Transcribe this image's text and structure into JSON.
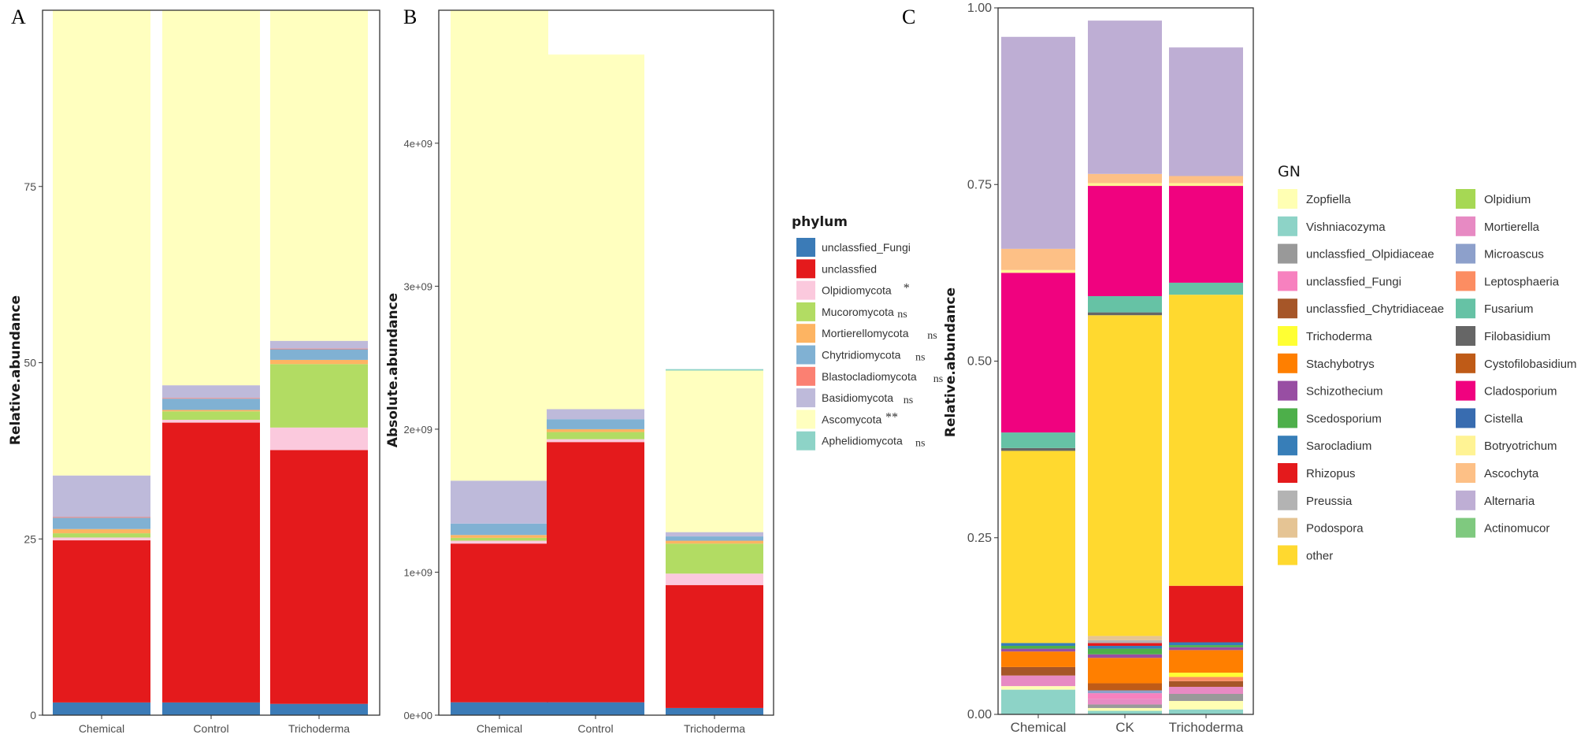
{
  "colors": {
    "unclassfied_Fungi": "#3b7bb7",
    "unclassfied": "#e41a1c",
    "Olpidiomycota": "#fbc9dd",
    "Mucoromycota": "#b2dc63",
    "Mortierellomycota": "#fdb462",
    "Chytridiomycota": "#80b1d3",
    "Blastocladiomycota": "#fb8072",
    "Basidiomycota": "#bebada",
    "Ascomycota": "#ffffbf",
    "Aphelidiomycota": "#8dd3c7"
  },
  "chart_data": [
    {
      "id": "A",
      "type": "bar",
      "stacked": true,
      "title": "",
      "panel_label": "A",
      "xlabel": "",
      "ylabel": "Relative.abundance",
      "ylim": [
        0,
        100
      ],
      "yticks": [
        0,
        25,
        50,
        75
      ],
      "ytick_labels": [
        "0",
        "25",
        "50",
        "75"
      ],
      "categories": [
        "Chemical",
        "Control",
        "Trichoderma"
      ],
      "series": [
        {
          "name": "unclassfied_Fungi",
          "values": [
            1.8,
            1.8,
            1.6
          ]
        },
        {
          "name": "unclassfied",
          "values": [
            23.0,
            39.7,
            36.0
          ]
        },
        {
          "name": "Olpidiomycota",
          "values": [
            0.4,
            0.4,
            3.2
          ]
        },
        {
          "name": "Mucoromycota",
          "values": [
            0.6,
            1.2,
            9.0
          ]
        },
        {
          "name": "Mortierellomycota",
          "values": [
            0.6,
            0.2,
            0.6
          ]
        },
        {
          "name": "Chytridiomycota",
          "values": [
            1.6,
            1.6,
            1.5
          ]
        },
        {
          "name": "Blastocladiomycota",
          "values": [
            0.1,
            0.1,
            0.1
          ]
        },
        {
          "name": "Basidiomycota",
          "values": [
            5.9,
            1.8,
            1.1
          ]
        },
        {
          "name": "Ascomycota",
          "values": [
            66.0,
            53.2,
            46.9
          ]
        },
        {
          "name": "Aphelidiomycota",
          "values": [
            0,
            0,
            0
          ]
        }
      ]
    },
    {
      "id": "B",
      "type": "bar",
      "stacked": true,
      "title": "",
      "panel_label": "B",
      "xlabel": "",
      "ylabel": "Absolute.abundance",
      "ylim": [
        0,
        4930000000
      ],
      "yticks": [
        0,
        1000000000,
        2000000000,
        3000000000,
        4000000000
      ],
      "ytick_labels": [
        "0e+00",
        "1e+09",
        "2e+09",
        "3e+09",
        "4e+09"
      ],
      "categories": [
        "Chemical",
        "Control",
        "Trichoderma"
      ],
      "series": [
        {
          "name": "unclassfied_Fungi",
          "values": [
            90000000,
            90000000,
            50000000
          ]
        },
        {
          "name": "unclassfied",
          "values": [
            1110000000,
            1820000000,
            860000000
          ]
        },
        {
          "name": "Olpidiomycota",
          "values": [
            20000000,
            20000000,
            80000000
          ]
        },
        {
          "name": "Mucoromycota",
          "values": [
            20000000,
            50000000,
            210000000
          ]
        },
        {
          "name": "Mortierellomycota",
          "values": [
            20000000,
            20000000,
            20000000
          ]
        },
        {
          "name": "Chytridiomycota",
          "values": [
            80000000,
            70000000,
            30000000
          ]
        },
        {
          "name": "Blastocladiomycota",
          "values": [
            0,
            0,
            0
          ]
        },
        {
          "name": "Basidiomycota",
          "values": [
            300000000,
            70000000,
            30000000
          ]
        },
        {
          "name": "Ascomycota",
          "values": [
            3290000000,
            2480000000,
            1130000000
          ]
        },
        {
          "name": "Aphelidiomycota",
          "values": [
            0,
            0,
            10000000
          ]
        }
      ]
    },
    {
      "id": "C",
      "type": "bar",
      "stacked": true,
      "title": "",
      "panel_label": "C",
      "xlabel": "",
      "ylabel": "Relative.abundance",
      "ylim": [
        0,
        1
      ],
      "yticks": [
        0,
        0.25,
        0.5,
        0.75,
        1.0
      ],
      "ytick_labels": [
        "0.00",
        "0.25",
        "0.50",
        "0.75",
        "1.00"
      ],
      "categories": [
        "Chemical",
        "CK",
        "Trichoderma"
      ],
      "series": [
        {
          "name": "Vishniacozyma",
          "values": [
            0.035,
            0.005,
            0.007
          ],
          "color": "#8dd3c7"
        },
        {
          "name": "Zopfiella",
          "values": [
            0.005,
            0.004,
            0.012
          ],
          "color": "#ffffb3"
        },
        {
          "name": "Olpidium",
          "values": [
            0,
            0,
            0
          ],
          "color": "#a6d854"
        },
        {
          "name": "unclassfied_Olpidiaceae",
          "values": [
            0,
            0.005,
            0.01
          ],
          "color": "#999999"
        },
        {
          "name": "Mortierella",
          "values": [
            0.015,
            0.008,
            0.01
          ],
          "color": "#e78ac3"
        },
        {
          "name": "unclassfied_Fungi",
          "values": [
            0,
            0.008,
            0
          ],
          "color": "#f781bf"
        },
        {
          "name": "Microascus",
          "values": [
            0,
            0.004,
            0
          ],
          "color": "#8da0cb"
        },
        {
          "name": "unclassfied_Chytridiaceae",
          "values": [
            0.012,
            0,
            0.008
          ],
          "color": "#a65628"
        },
        {
          "name": "Leptosphaeria",
          "values": [
            0,
            0,
            0.006
          ],
          "color": "#fc8d62"
        },
        {
          "name": "Cystofilobasidium",
          "values": [
            0,
            0.01,
            0
          ],
          "color": "#bf5b17"
        },
        {
          "name": "Trichoderma",
          "values": [
            0,
            0,
            0.006
          ],
          "color": "#ffff33"
        },
        {
          "name": "Stachybotrys",
          "values": [
            0.022,
            0.036,
            0.032
          ],
          "color": "#ff7f00"
        },
        {
          "name": "Schizothecium",
          "values": [
            0.004,
            0.005,
            0.004
          ],
          "color": "#984ea3"
        },
        {
          "name": "Scedosporium",
          "values": [
            0.004,
            0.008,
            0.003
          ],
          "color": "#4daf4a"
        },
        {
          "name": "Sarocladium",
          "values": [
            0.004,
            0.004,
            0.004
          ],
          "color": "#377eb8"
        },
        {
          "name": "Rhizopus",
          "values": [
            0,
            0.004,
            0.08
          ],
          "color": "#e41a1c"
        },
        {
          "name": "Preussia",
          "values": [
            0,
            0.004,
            0
          ],
          "color": "#b3b3b3"
        },
        {
          "name": "Podospora",
          "values": [
            0,
            0.006,
            0
          ],
          "color": "#e5c494"
        },
        {
          "name": "other",
          "values": [
            0.272,
            0.454,
            0.412
          ],
          "color": "#ffd92f"
        },
        {
          "name": "Filobasidium",
          "values": [
            0.004,
            0.004,
            0
          ],
          "color": "#666666"
        },
        {
          "name": "Fusarium",
          "values": [
            0.022,
            0.023,
            0.017
          ],
          "color": "#66c2a5"
        },
        {
          "name": "Cistella",
          "values": [
            0.0,
            0.0,
            0.0
          ],
          "color": "#386cb0"
        },
        {
          "name": "Cladosporium",
          "values": [
            0.226,
            0.156,
            0.137
          ],
          "color": "#f0027f"
        },
        {
          "name": "Botryotrichum",
          "values": [
            0.004,
            0.004,
            0.004
          ],
          "color": "#fff394"
        },
        {
          "name": "Ascochyta",
          "values": [
            0.03,
            0.013,
            0.01
          ],
          "color": "#fdc086"
        },
        {
          "name": "Alternaria",
          "values": [
            0.3,
            0.217,
            0.182
          ],
          "color": "#beaed4"
        },
        {
          "name": "Actinomucor",
          "values": [
            0,
            0,
            0
          ],
          "color": "#7fc97f"
        }
      ]
    }
  ],
  "legend_B": {
    "title": "phylum",
    "items": [
      {
        "name": "unclassfied_Fungi",
        "sig": ""
      },
      {
        "name": "unclassfied",
        "sig": ""
      },
      {
        "name": "Olpidiomycota",
        "sig": "*"
      },
      {
        "name": "Mucoromycota",
        "sig": "ns"
      },
      {
        "name": "Mortierellomycota",
        "sig": "ns"
      },
      {
        "name": "Chytridiomycota",
        "sig": "ns"
      },
      {
        "name": "Blastocladiomycota",
        "sig": "ns"
      },
      {
        "name": "Basidiomycota",
        "sig": "ns"
      },
      {
        "name": "Ascomycota",
        "sig": "**"
      },
      {
        "name": "Aphelidiomycota",
        "sig": "ns"
      }
    ]
  },
  "legend_C": {
    "title": "GN",
    "col1": [
      {
        "name": "Zopfiella",
        "color": "#ffffb3"
      },
      {
        "name": "Vishniacozyma",
        "color": "#8dd3c7"
      },
      {
        "name": "unclassfied_Olpidiaceae",
        "color": "#999999"
      },
      {
        "name": "unclassfied_Fungi",
        "color": "#f781bf"
      },
      {
        "name": "unclassfied_Chytridiaceae",
        "color": "#a65628"
      },
      {
        "name": "Trichoderma",
        "color": "#ffff33"
      },
      {
        "name": "Stachybotrys",
        "color": "#ff7f00"
      },
      {
        "name": "Schizothecium",
        "color": "#984ea3"
      },
      {
        "name": "Scedosporium",
        "color": "#4daf4a"
      },
      {
        "name": "Sarocladium",
        "color": "#377eb8"
      },
      {
        "name": "Rhizopus",
        "color": "#e41a1c"
      },
      {
        "name": "Preussia",
        "color": "#b3b3b3"
      },
      {
        "name": "Podospora",
        "color": "#e5c494"
      },
      {
        "name": "other",
        "color": "#ffd92f"
      }
    ],
    "col2": [
      {
        "name": "Olpidium",
        "color": "#a6d854"
      },
      {
        "name": "Mortierella",
        "color": "#e78ac3"
      },
      {
        "name": "Microascus",
        "color": "#8da0cb"
      },
      {
        "name": "Leptosphaeria",
        "color": "#fc8d62"
      },
      {
        "name": "Fusarium",
        "color": "#66c2a5"
      },
      {
        "name": "Filobasidium",
        "color": "#666666"
      },
      {
        "name": "Cystofilobasidium",
        "color": "#bf5b17"
      },
      {
        "name": "Cladosporium",
        "color": "#f0027f"
      },
      {
        "name": "Cistella",
        "color": "#386cb0"
      },
      {
        "name": "Botryotrichum",
        "color": "#fff394"
      },
      {
        "name": "Ascochyta",
        "color": "#fdc086"
      },
      {
        "name": "Alternaria",
        "color": "#beaed4"
      },
      {
        "name": "Actinomucor",
        "color": "#7fc97f"
      }
    ]
  }
}
